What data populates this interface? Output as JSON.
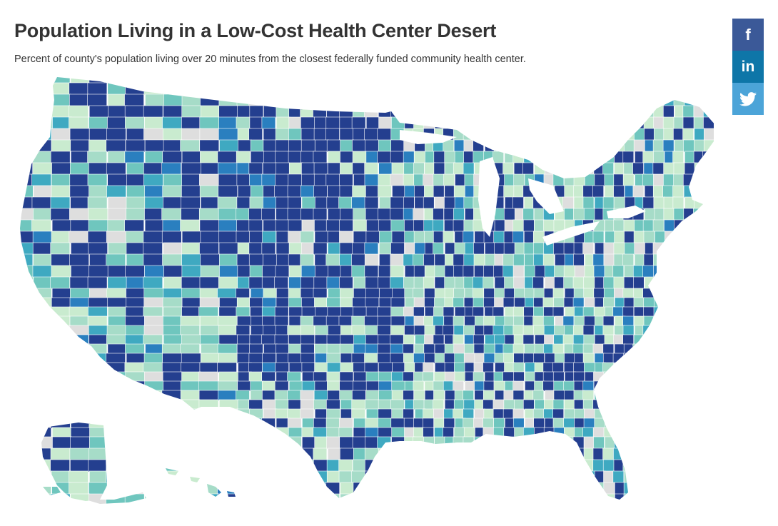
{
  "header": {
    "title": "Population Living in a Low-Cost Health Center Desert",
    "subtitle": "Percent of county's population living over 20 minutes from the closest federally funded community health center."
  },
  "share": [
    {
      "name": "facebook-button",
      "icon": "facebook-icon",
      "glyph": "f",
      "color": "#3b5998"
    },
    {
      "name": "linkedin-button",
      "icon": "linkedin-icon",
      "glyph": "in",
      "color": "#0e76a8"
    },
    {
      "name": "twitter-button",
      "icon": "twitter-icon",
      "glyph": "bird",
      "color": "#4ca4d8"
    }
  ],
  "map": {
    "region": "United States counties",
    "palette": [
      "#dedede",
      "#c9ebcf",
      "#a6dcc8",
      "#6fc6be",
      "#3fa9c1",
      "#2a7fbf",
      "#243f8f"
    ],
    "water": "#ffffff",
    "notes": "choropleth; dark blue = high share of population in a health-center desert; grey = no data"
  }
}
